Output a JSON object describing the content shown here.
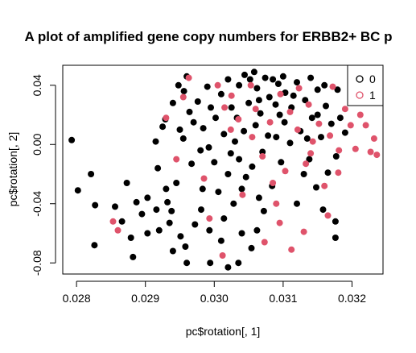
{
  "chart_data": {
    "type": "scatter",
    "title": "A plot of amplified gene copy numbers for ERBB2+ BC p",
    "xlabel": "pc$rotation[, 1]",
    "ylabel": "pc$rotation[, 2]",
    "xlim": [
      0.0278,
      0.03245
    ],
    "ylim": [
      -0.0875,
      0.0535
    ],
    "xticks": [
      0.028,
      0.029,
      0.03,
      0.031,
      0.032
    ],
    "xtick_labels": [
      "0.028",
      "0.029",
      "0.030",
      "0.031",
      "0.032"
    ],
    "yticks": [
      -0.08,
      -0.04,
      0.0,
      0.04
    ],
    "ytick_labels": [
      "-0.08",
      "-0.04",
      "0.00",
      "0.04"
    ],
    "grid": false,
    "legend": {
      "placement": "top-right",
      "entries": [
        {
          "label": "0",
          "color": "#000000"
        },
        {
          "label": "1",
          "color": "#DF536B"
        }
      ]
    },
    "series": [
      {
        "name": "0",
        "color": "#000000",
        "points": [
          [
            0.02793,
            0.003
          ],
          [
            0.02802,
            -0.031
          ],
          [
            0.02821,
            -0.02
          ],
          [
            0.02827,
            -0.041
          ],
          [
            0.02826,
            -0.068
          ],
          [
            0.02856,
            -0.042
          ],
          [
            0.02866,
            -0.052
          ],
          [
            0.02873,
            -0.026
          ],
          [
            0.02879,
            -0.063
          ],
          [
            0.02882,
            -0.076
          ],
          [
            0.02887,
            -0.039
          ],
          [
            0.02895,
            -0.047
          ],
          [
            0.02903,
            -0.036
          ],
          [
            0.02903,
            -0.06
          ],
          [
            0.02916,
            -0.044
          ],
          [
            0.02918,
            -0.016
          ],
          [
            0.02929,
            0.017
          ],
          [
            0.02932,
            -0.039
          ],
          [
            0.02935,
            -0.053
          ],
          [
            0.0294,
            -0.072
          ],
          [
            0.02945,
            -0.026
          ],
          [
            0.02958,
            -0.069
          ],
          [
            0.0296,
            -0.08
          ],
          [
            0.02981,
            -0.044
          ],
          [
            0.02993,
            -0.058
          ],
          [
            0.02994,
            -0.08
          ],
          [
            0.0301,
            -0.065
          ],
          [
            0.0302,
            -0.083
          ],
          [
            0.03035,
            -0.08
          ],
          [
            0.0304,
            -0.06
          ],
          [
            0.03028,
            -0.04
          ],
          [
            0.03006,
            -0.032
          ],
          [
            0.02967,
            -0.013
          ],
          [
            0.02955,
            0.004
          ],
          [
            0.02964,
            0.022
          ],
          [
            0.02956,
            0.036
          ],
          [
            0.0294,
            0.028
          ],
          [
            0.0295,
            0.01
          ],
          [
            0.02976,
            0.029
          ],
          [
            0.02984,
            0.011
          ],
          [
            0.02992,
            -0.002
          ],
          [
            0.03002,
            0.018
          ],
          [
            0.0301,
            0.034
          ],
          [
            0.03014,
            0.007
          ],
          [
            0.03024,
            -0.006
          ],
          [
            0.03025,
            0.025
          ],
          [
            0.03036,
            0.04
          ],
          [
            0.03033,
            0.018
          ],
          [
            0.03043,
            0.009
          ],
          [
            0.03044,
            0.047
          ],
          [
            0.0305,
            0.028
          ],
          [
            0.03058,
            0.049
          ],
          [
            0.03062,
            0.038
          ],
          [
            0.0306,
            0.013
          ],
          [
            0.03067,
            0.021
          ],
          [
            0.03074,
            0.045
          ],
          [
            0.0308,
            0.032
          ],
          [
            0.03078,
            0.006
          ],
          [
            0.03089,
            0.027
          ],
          [
            0.03093,
            0.041
          ],
          [
            0.03102,
            0.015
          ],
          [
            0.03103,
            0.035
          ],
          [
            0.03112,
            0.025
          ],
          [
            0.0312,
            0.042
          ],
          [
            0.03125,
            0.009
          ],
          [
            0.03132,
            0.03
          ],
          [
            0.03142,
            0.018
          ],
          [
            0.0315,
            0.037
          ],
          [
            0.03155,
            0.005
          ],
          [
            0.03162,
            0.026
          ],
          [
            0.0317,
            0.014
          ],
          [
            0.03177,
            -0.008
          ],
          [
            0.03176,
            -0.052
          ],
          [
            0.03176,
            -0.063
          ],
          [
            0.03158,
            -0.044
          ],
          [
            0.0312,
            -0.04
          ],
          [
            0.0313,
            -0.02
          ],
          [
            0.03097,
            -0.012
          ],
          [
            0.0311,
            0.001
          ],
          [
            0.03084,
            -0.028
          ],
          [
            0.03072,
            -0.045
          ],
          [
            0.03062,
            -0.058
          ],
          [
            0.03054,
            -0.07
          ],
          [
            0.03065,
            -0.036
          ],
          [
            0.03046,
            -0.022
          ],
          [
            0.03036,
            -0.01
          ],
          [
            0.03014,
            -0.05
          ],
          [
            0.02983,
            -0.03
          ],
          [
            0.02972,
            -0.054
          ],
          [
            0.02951,
            -0.062
          ],
          [
            0.02938,
            -0.045
          ],
          [
            0.0293,
            -0.03
          ],
          [
            0.0292,
            -0.058
          ],
          [
            0.02925,
            0.012
          ],
          [
            0.02915,
            0.002
          ],
          [
            0.02948,
            0.04
          ],
          [
            0.0296,
            0.046
          ],
          [
            0.0299,
            0.039
          ],
          [
            0.0302,
            0.044
          ],
          [
            0.03052,
            0.044
          ],
          [
            0.03085,
            0.044
          ],
          [
            0.031,
            0.046
          ],
          [
            0.0314,
            0.045
          ],
          [
            0.0316,
            0.04
          ],
          [
            0.03179,
            0.037
          ],
          [
            0.03183,
            0.018
          ],
          [
            0.0319,
            0.008
          ],
          [
            0.03165,
            -0.019
          ],
          [
            0.03148,
            -0.029
          ],
          [
            0.03138,
            -0.01
          ],
          [
            0.0309,
            0.005
          ],
          [
            0.0307,
            -0.005
          ],
          [
            0.03055,
            -0.015
          ],
          [
            0.0304,
            -0.03
          ],
          [
            0.0302,
            -0.02
          ],
          [
            0.03,
            -0.012
          ],
          [
            0.0298,
            -0.004
          ],
          [
            0.0297,
            0.015
          ],
          [
            0.02995,
            0.025
          ],
          [
            0.0303,
            0.002
          ],
          [
            0.03065,
            0.03
          ],
          [
            0.03095,
            0.02
          ],
          [
            0.03115,
            0.033
          ],
          [
            0.03135,
            0.004
          ],
          [
            0.0315,
            0.02
          ]
        ]
      },
      {
        "name": "1",
        "color": "#DF536B",
        "points": [
          [
            0.02853,
            -0.052
          ],
          [
            0.0286,
            -0.058
          ],
          [
            0.0293,
            0.018
          ],
          [
            0.02945,
            -0.01
          ],
          [
            0.02955,
            0.032
          ],
          [
            0.02963,
            0.045
          ],
          [
            0.02985,
            -0.023
          ],
          [
            0.02993,
            -0.05
          ],
          [
            0.03005,
            0.04
          ],
          [
            0.03012,
            -0.075
          ],
          [
            0.03024,
            0.01
          ],
          [
            0.03041,
            -0.034
          ],
          [
            0.03053,
            0.04
          ],
          [
            0.0306,
            0.024
          ],
          [
            0.03073,
            -0.066
          ],
          [
            0.03081,
            0.015
          ],
          [
            0.0309,
            -0.04
          ],
          [
            0.03096,
            0.034
          ],
          [
            0.03103,
            -0.018
          ],
          [
            0.0311,
            0.022
          ],
          [
            0.03112,
            -0.071
          ],
          [
            0.03121,
            0.01
          ],
          [
            0.03123,
            0.038
          ],
          [
            0.03133,
            -0.013
          ],
          [
            0.03137,
            0.027
          ],
          [
            0.0314,
            -0.006
          ],
          [
            0.03143,
            0.002
          ],
          [
            0.03152,
            0.014
          ],
          [
            0.0316,
            -0.028
          ],
          [
            0.03168,
            0.006
          ],
          [
            0.03172,
            0.039
          ],
          [
            0.03181,
            -0.004
          ],
          [
            0.0319,
            0.024
          ],
          [
            0.03198,
            0.013
          ],
          [
            0.03205,
            -0.003
          ],
          [
            0.03212,
            0.02
          ],
          [
            0.0322,
            0.013
          ],
          [
            0.03227,
            -0.005
          ],
          [
            0.03232,
            0.004
          ],
          [
            0.03236,
            -0.007
          ],
          [
            0.0318,
            -0.019
          ],
          [
            0.03165,
            -0.048
          ],
          [
            0.0313,
            -0.059
          ],
          [
            0.03095,
            -0.053
          ],
          [
            0.03085,
            -0.026
          ],
          [
            0.0307,
            -0.008
          ],
          [
            0.03055,
            0.005
          ],
          [
            0.03035,
            0.017
          ],
          [
            0.03025,
            0.033
          ],
          [
            0.03015,
            0.025
          ]
        ]
      }
    ]
  }
}
